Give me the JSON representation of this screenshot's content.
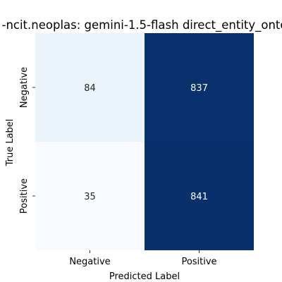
{
  "chart_data": {
    "type": "heatmap",
    "title": "-ncit.neoplas: gemini-1.5-flash direct_entity_onto",
    "xlabel": "Predicted Label",
    "ylabel": "True Label",
    "x_categories": [
      "Negative",
      "Positive"
    ],
    "y_categories": [
      "Negative",
      "Positive"
    ],
    "values": [
      [
        84,
        837
      ],
      [
        35,
        841
      ]
    ],
    "colormap": "Blues",
    "colors": {
      "low": "#f7fbff",
      "high": "#08306b",
      "text_dark": "#262626",
      "text_light": "#ffffff"
    },
    "colorbar": false
  }
}
